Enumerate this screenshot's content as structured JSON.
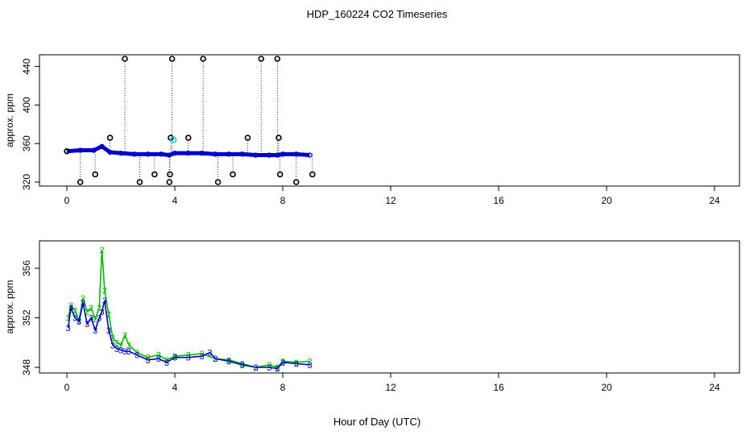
{
  "title": "HDP_160224  CO2 Timeseries",
  "xlabel": "Hour of Day (UTC)",
  "colors": {
    "black": "#000000",
    "cyan": "#00c8e6",
    "green": "#00bb00",
    "blue": "#0000cc"
  },
  "chart_data": [
    {
      "type": "scatter",
      "panel": "top",
      "ylabel": "approx. ppm",
      "xlim": [
        0,
        24
      ],
      "ylim": [
        320,
        450
      ],
      "xticks": [
        0,
        4,
        8,
        12,
        16,
        20,
        24
      ],
      "yticks": [
        320,
        360,
        400,
        440
      ],
      "series": [
        {
          "role": "baseline",
          "color": "#0000cc",
          "x": [
            0.0,
            0.5,
            1.0,
            1.3,
            1.6,
            2.0,
            2.5,
            3.0,
            3.5,
            3.8,
            4.0,
            4.5,
            5.0,
            5.5,
            6.0,
            6.5,
            7.0,
            7.5,
            7.8,
            8.0,
            8.5,
            9.0
          ],
          "y": [
            352,
            353,
            353,
            357,
            351,
            350,
            349,
            349,
            349,
            348,
            350,
            350,
            350,
            349,
            349,
            349,
            348,
            348,
            348,
            349,
            349,
            348
          ]
        },
        {
          "role": "outliers",
          "color": "#000000",
          "x": [
            0.0,
            0.5,
            1.05,
            1.6,
            2.15,
            2.7,
            3.25,
            3.8,
            3.82,
            3.85,
            3.9,
            4.5,
            5.05,
            5.6,
            6.15,
            6.7,
            7.2,
            7.8,
            7.85,
            7.9,
            8.5,
            9.1
          ],
          "y": [
            352,
            320,
            328,
            366,
            448,
            320,
            328,
            320,
            328,
            366,
            448,
            366,
            448,
            320,
            328,
            366,
            448,
            448,
            366,
            328,
            320,
            328
          ]
        },
        {
          "role": "cyan",
          "color": "#00c8e6",
          "x": [
            3.95
          ],
          "y": [
            364
          ]
        }
      ]
    },
    {
      "type": "line",
      "panel": "bottom",
      "ylabel": "approx. ppm",
      "xlim": [
        0,
        24
      ],
      "ylim": [
        347.5,
        358.5
      ],
      "xticks": [
        0,
        4,
        8,
        12,
        16,
        20,
        24
      ],
      "yticks": [
        348,
        352,
        356
      ],
      "series": [
        {
          "name": "2",
          "color": "#00bb00",
          "x": [
            0.05,
            0.15,
            0.3,
            0.45,
            0.6,
            0.75,
            0.9,
            1.05,
            1.2,
            1.3,
            1.4,
            1.55,
            1.7,
            1.85,
            2.0,
            2.15,
            2.3,
            2.6,
            3.0,
            3.4,
            3.7,
            4.0,
            4.5,
            5.0,
            5.5,
            6.0,
            6.5,
            7.0,
            7.5,
            7.8,
            8.0,
            8.5,
            9.0
          ],
          "y": [
            352.0,
            353.0,
            352.6,
            351.8,
            353.6,
            352.5,
            352.8,
            351.9,
            352.8,
            357.5,
            354.2,
            352.3,
            350.4,
            350.0,
            349.8,
            350.6,
            349.8,
            349.2,
            348.8,
            349.0,
            348.6,
            348.9,
            349.0,
            349.1,
            348.7,
            348.6,
            348.3,
            348.0,
            348.2,
            348.0,
            348.5,
            348.4,
            348.5
          ]
        },
        {
          "name": "3",
          "color": "#0000cc",
          "x": [
            0.05,
            0.15,
            0.3,
            0.45,
            0.6,
            0.75,
            0.9,
            1.05,
            1.2,
            1.3,
            1.4,
            1.55,
            1.7,
            1.85,
            2.0,
            2.15,
            2.3,
            2.6,
            3.0,
            3.4,
            3.7,
            4.0,
            4.5,
            5.0,
            5.3,
            5.5,
            6.0,
            6.5,
            7.0,
            7.5,
            7.8,
            8.0,
            8.5,
            9.0
          ],
          "y": [
            351.2,
            352.8,
            352.0,
            351.7,
            353.2,
            351.5,
            352.0,
            351.0,
            352.0,
            352.5,
            353.4,
            351.0,
            349.8,
            349.5,
            349.4,
            349.3,
            349.3,
            349.0,
            348.6,
            348.7,
            348.4,
            348.8,
            348.8,
            348.9,
            349.2,
            348.7,
            348.5,
            348.2,
            348.0,
            348.0,
            347.9,
            348.4,
            348.3,
            348.2
          ]
        }
      ]
    }
  ]
}
